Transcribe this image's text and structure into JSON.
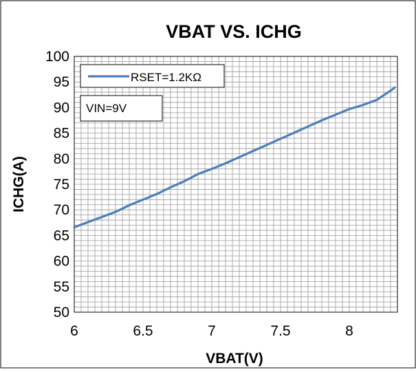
{
  "chart_data": {
    "type": "line",
    "title": "VBAT VS. ICHG",
    "xlabel": "VBAT(V)",
    "ylabel": "ICHG(A)",
    "xlim": [
      6,
      8.35
    ],
    "ylim": [
      50,
      100
    ],
    "x_ticks": [
      6,
      6.5,
      7,
      7.5,
      8
    ],
    "y_ticks": [
      50,
      55,
      60,
      65,
      70,
      75,
      80,
      85,
      90,
      95,
      100
    ],
    "x_tick_labels": [
      "6",
      "6.5",
      "7",
      "7.5",
      "8"
    ],
    "y_tick_labels": [
      "50",
      "55",
      "60",
      "65",
      "70",
      "75",
      "80",
      "85",
      "90",
      "95",
      "100"
    ],
    "grid": true,
    "legend_position": "top-left",
    "annotation": "VIN=9V",
    "line_color": "#4a7ebb",
    "series": [
      {
        "name": "RSET=1.2KΩ",
        "x": [
          6.0,
          6.1,
          6.2,
          6.3,
          6.4,
          6.5,
          6.6,
          6.7,
          6.8,
          6.9,
          7.0,
          7.1,
          7.2,
          7.3,
          7.4,
          7.5,
          7.6,
          7.7,
          7.8,
          7.9,
          8.0,
          8.1,
          8.2,
          8.25,
          8.3,
          8.33
        ],
        "y": [
          66.6,
          67.6,
          68.6,
          69.6,
          70.9,
          72.0,
          73.1,
          74.4,
          75.6,
          77.0,
          78.0,
          79.1,
          80.3,
          81.5,
          82.7,
          83.9,
          85.1,
          86.3,
          87.5,
          88.6,
          89.7,
          90.5,
          91.5,
          92.4,
          93.3,
          93.9
        ]
      }
    ]
  }
}
